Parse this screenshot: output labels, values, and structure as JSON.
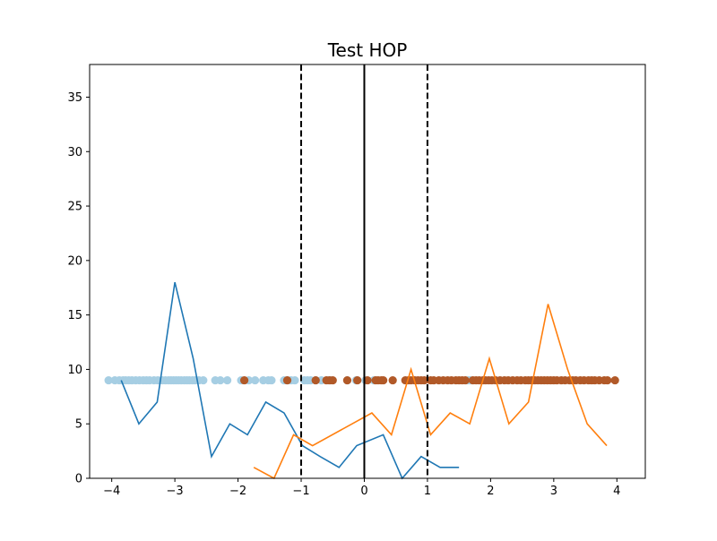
{
  "chart_data": {
    "type": "line",
    "title": "Test HOP",
    "xlabel": "",
    "ylabel": "",
    "xlim": [
      -4.35,
      4.45
    ],
    "ylim": [
      0,
      38
    ],
    "grid": false,
    "x_ticks": [
      -4,
      -3,
      -2,
      -1,
      0,
      1,
      2,
      3,
      4
    ],
    "x_tick_labels": [
      "−4",
      "−3",
      "−2",
      "−1",
      "0",
      "1",
      "2",
      "3",
      "4"
    ],
    "y_ticks": [
      0,
      5,
      10,
      15,
      20,
      25,
      30,
      35
    ],
    "y_tick_labels": [
      "0",
      "5",
      "10",
      "15",
      "20",
      "25",
      "30",
      "35"
    ],
    "vlines": [
      {
        "x": -1,
        "style": "dashed",
        "color": "#000000"
      },
      {
        "x": 0,
        "style": "solid",
        "color": "#000000"
      },
      {
        "x": 1,
        "style": "dashed",
        "color": "#000000"
      }
    ],
    "series": [
      {
        "kind": "line",
        "color": "#1f77b4",
        "x": [
          -3.85,
          -3.57,
          -3.28,
          -3.0,
          -2.71,
          -2.42,
          -2.13,
          -1.85,
          -1.56,
          -1.27,
          -0.98,
          -0.7,
          -0.4,
          -0.12,
          0.3,
          0.6,
          0.9,
          1.2,
          1.5
        ],
        "y": [
          9,
          5,
          7,
          18,
          11,
          2,
          5,
          4,
          7,
          6,
          3,
          2,
          1,
          3,
          4,
          0,
          2,
          1,
          1
        ]
      },
      {
        "kind": "line",
        "color": "#ff7f0e",
        "x": [
          -1.75,
          -1.43,
          -1.12,
          -0.82,
          0.12,
          0.43,
          0.74,
          1.05,
          1.36,
          1.67,
          1.98,
          2.29,
          2.6,
          2.91,
          3.22,
          3.53,
          3.84
        ],
        "y": [
          1,
          0,
          4,
          3,
          6,
          4,
          10,
          4,
          6,
          5,
          11,
          5,
          7,
          16,
          10,
          5,
          3
        ]
      },
      {
        "kind": "scatter",
        "color": "#a6cee3",
        "y_value": 9,
        "x": [
          -4.05,
          -3.95,
          -3.88,
          -3.82,
          -3.78,
          -3.73,
          -3.68,
          -3.62,
          -3.56,
          -3.5,
          -3.45,
          -3.4,
          -3.33,
          -3.27,
          -3.2,
          -3.15,
          -3.1,
          -3.06,
          -3.02,
          -2.98,
          -2.94,
          -2.9,
          -2.85,
          -2.81,
          -2.77,
          -2.72,
          -2.68,
          -2.62,
          -2.55,
          -2.36,
          -2.28,
          -2.17,
          -1.95,
          -1.83,
          -1.73,
          -1.6,
          -1.52,
          -1.47,
          -1.27,
          -1.22,
          -1.16,
          -1.1,
          -0.95,
          -0.9,
          -0.85,
          -0.77,
          -0.68,
          -0.57,
          -0.53,
          -0.27,
          -0.13,
          0.02,
          0.15,
          1.65,
          1.68
        ]
      },
      {
        "kind": "scatter",
        "color": "#b15928",
        "y_value": 9,
        "x": [
          -1.9,
          -1.22,
          -0.77,
          -0.6,
          -0.55,
          -0.5,
          -0.27,
          -0.11,
          0.05,
          0.18,
          0.22,
          0.27,
          0.3,
          0.45,
          0.65,
          0.7,
          0.74,
          0.8,
          0.85,
          0.9,
          0.95,
          1.05,
          1.1,
          1.18,
          1.25,
          1.32,
          1.38,
          1.45,
          1.5,
          1.55,
          1.6,
          1.72,
          1.77,
          1.82,
          1.88,
          1.92,
          1.97,
          2.02,
          2.08,
          2.15,
          2.22,
          2.28,
          2.35,
          2.42,
          2.48,
          2.55,
          2.6,
          2.65,
          2.7,
          2.75,
          2.8,
          2.85,
          2.9,
          2.95,
          3.0,
          3.05,
          3.12,
          3.18,
          3.25,
          3.3,
          3.35,
          3.42,
          3.48,
          3.55,
          3.6,
          3.65,
          3.72,
          3.8,
          3.85,
          3.97
        ]
      }
    ]
  }
}
